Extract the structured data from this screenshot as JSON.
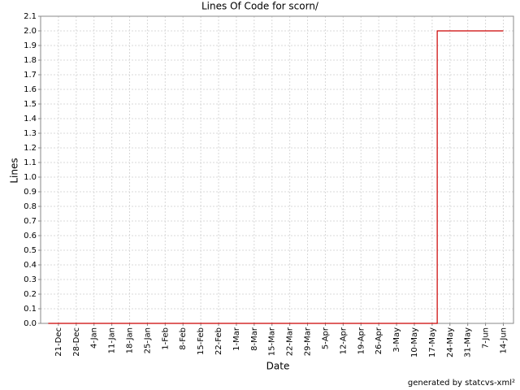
{
  "chart_data": {
    "type": "line",
    "step": "post",
    "title": "Lines Of Code for scorn/",
    "x_label": "Date",
    "y_label": "Lines",
    "footer": "generated by statcvs-xml²",
    "x": [
      "17-Dec",
      "19-May",
      "14-Jun"
    ],
    "values": [
      0,
      2,
      2
    ],
    "color": "#cc0000",
    "xlim": [
      "14-Dec",
      "18-Jun"
    ],
    "xticks": [
      "21-Dec",
      "28-Dec",
      "4-Jan",
      "11-Jan",
      "18-Jan",
      "25-Jan",
      "1-Feb",
      "8-Feb",
      "15-Feb",
      "22-Feb",
      "1-Mar",
      "8-Mar",
      "15-Mar",
      "22-Mar",
      "29-Mar",
      "5-Apr",
      "12-Apr",
      "19-Apr",
      "26-Apr",
      "3-May",
      "10-May",
      "17-May",
      "24-May",
      "31-May",
      "7-Jun",
      "14-Jun"
    ],
    "ylim": [
      0,
      2.1
    ],
    "yticks": [
      {
        "value": 0,
        "label": "0.0"
      },
      0.1,
      0.2,
      0.3,
      0.4,
      0.5,
      0.6,
      0.7,
      0.8,
      0.9,
      {
        "value": 1,
        "label": "1.0"
      },
      1.1,
      1.2,
      1.3,
      1.4,
      1.5,
      1.6,
      1.7,
      1.8,
      1.9,
      {
        "value": 2,
        "label": "2.0"
      },
      2.1
    ],
    "grid": true
  }
}
